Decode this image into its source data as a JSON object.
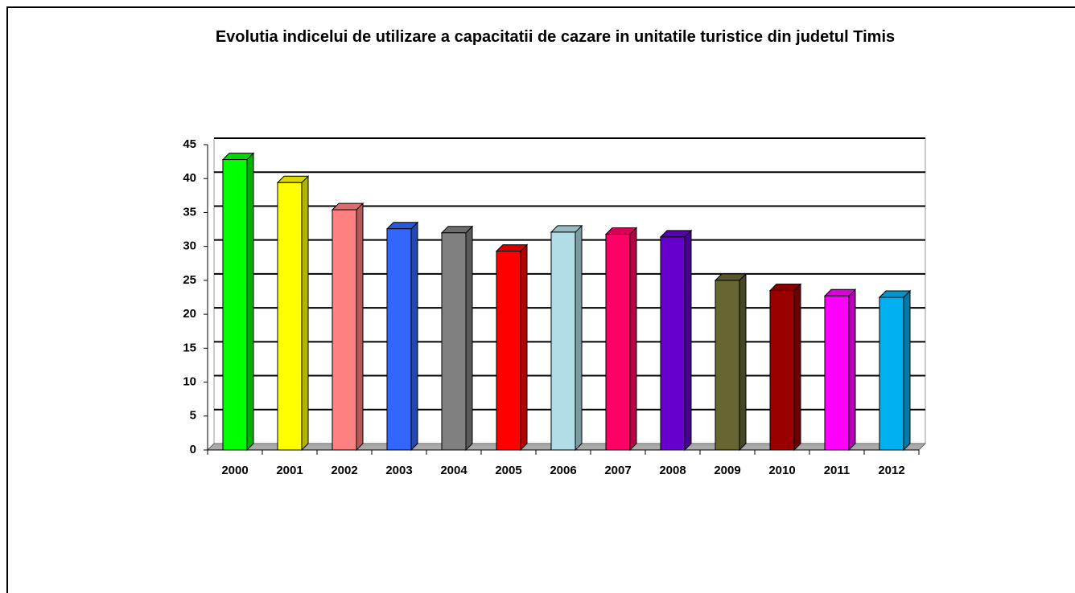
{
  "chart_data": {
    "type": "bar3d",
    "title": "Evolutia indicelui de utilizare a capacitatii de cazare in unitatile turistice din judetul Timis",
    "categories": [
      "2000",
      "2001",
      "2002",
      "2003",
      "2004",
      "2005",
      "2006",
      "2007",
      "2008",
      "2009",
      "2010",
      "2011",
      "2012"
    ],
    "values": [
      42.8,
      39.4,
      35.4,
      32.6,
      32.0,
      29.3,
      32.1,
      31.8,
      31.4,
      25.0,
      23.5,
      22.7,
      22.5
    ],
    "colors": [
      "#00ff00",
      "#ffff00",
      "#ff8080",
      "#3366ff",
      "#808080",
      "#ff0000",
      "#b0dde6",
      "#ff0066",
      "#6600cc",
      "#666633",
      "#990000",
      "#ff00ff",
      "#00b0f0"
    ],
    "ylim": [
      0,
      45
    ],
    "yticks": [
      0,
      5,
      10,
      15,
      20,
      25,
      30,
      35,
      40,
      45
    ],
    "grid": true
  }
}
